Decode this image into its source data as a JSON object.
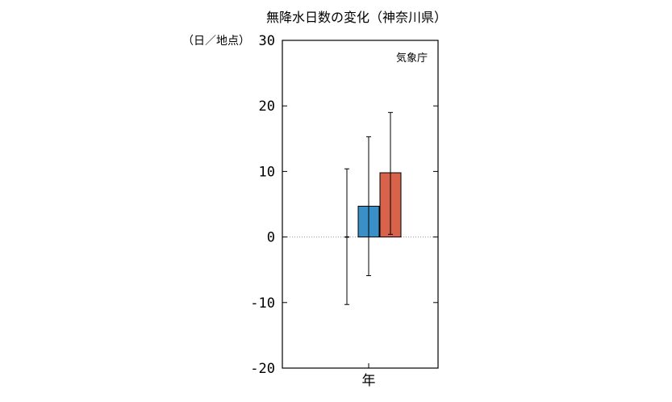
{
  "chart_data": {
    "type": "bar",
    "title": "無降水日数の変化（神奈川県）",
    "ylabel": "（日／地点）",
    "credit": "気象庁",
    "categories": [
      "年"
    ],
    "ylim": [
      -20,
      30
    ],
    "yticks": [
      "30",
      "20",
      "10",
      "0",
      "-10",
      "-20"
    ],
    "series": [
      {
        "values": [
          0.0
        ],
        "error_low": [
          -10.3
        ],
        "error_high": [
          10.4
        ],
        "color": "#000000",
        "style": "marker"
      },
      {
        "values": [
          4.7
        ],
        "error_low": [
          -5.9
        ],
        "error_high": [
          15.3
        ],
        "color": "#3a8fc7"
      },
      {
        "values": [
          9.8
        ],
        "error_low": [
          0.4
        ],
        "error_high": [
          19.0
        ],
        "color": "#d9624b"
      }
    ],
    "zero_line": "dotted",
    "grid": false
  }
}
